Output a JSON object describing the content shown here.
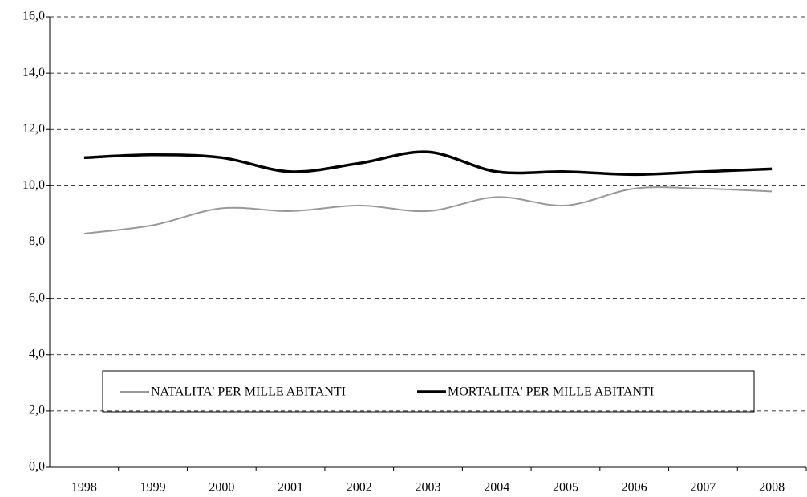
{
  "chart_data": {
    "type": "line",
    "categories": [
      "1998",
      "1999",
      "2000",
      "2001",
      "2002",
      "2003",
      "2004",
      "2005",
      "2006",
      "2007",
      "2008"
    ],
    "series": [
      {
        "name": "NATALITA' PER MILLE ABITANTI",
        "color": "#999999",
        "values": [
          8.3,
          8.6,
          9.2,
          9.1,
          9.3,
          9.1,
          9.6,
          9.3,
          9.9,
          9.9,
          9.8
        ]
      },
      {
        "name": "MORTALITA' PER MILLE ABITANTI",
        "color": "#000000",
        "values": [
          11.0,
          11.1,
          11.0,
          10.5,
          10.8,
          11.2,
          10.5,
          10.5,
          10.4,
          10.5,
          10.6
        ]
      }
    ],
    "ylim": [
      0,
      16
    ],
    "yticks": [
      {
        "value": 0,
        "label": "0,0"
      },
      {
        "value": 2,
        "label": "2,0"
      },
      {
        "value": 4,
        "label": "4,0"
      },
      {
        "value": 6,
        "label": "6,0"
      },
      {
        "value": 8,
        "label": "8,0"
      },
      {
        "value": 10,
        "label": "10,0"
      },
      {
        "value": 12,
        "label": "12,0"
      },
      {
        "value": 14,
        "label": "14,0"
      },
      {
        "value": 16,
        "label": "16,0"
      }
    ],
    "grid": true,
    "legend": "bottom"
  }
}
